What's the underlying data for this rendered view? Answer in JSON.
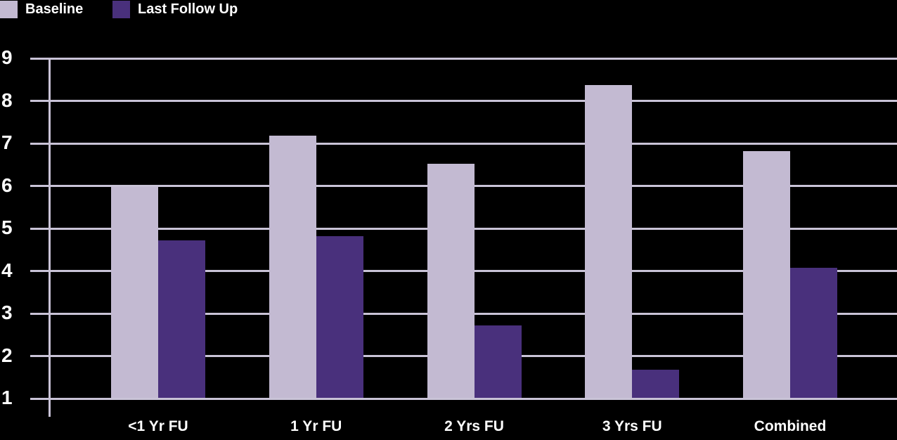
{
  "chart_data": {
    "type": "bar",
    "categories": [
      "<1 Yr FU",
      "1 Yr FU",
      "2 Yrs FU",
      "3 Yrs FU",
      "Combined"
    ],
    "series": [
      {
        "name": "Baseline",
        "color": "#c3bad2",
        "values": [
          6.0,
          7.2,
          6.55,
          8.4,
          6.85
        ]
      },
      {
        "name": "Last Follow Up",
        "color": "#49307c",
        "values": [
          4.75,
          4.85,
          2.75,
          1.7,
          4.1
        ]
      }
    ],
    "yticks": [
      1,
      2,
      3,
      4,
      5,
      6,
      7,
      8,
      9
    ],
    "ylim": [
      1,
      9
    ],
    "title": "",
    "xlabel": "",
    "ylabel": "",
    "grid": true,
    "legend_position": "top-left",
    "background_color": "#000000",
    "gridline_color": "#c9c3d7",
    "text_color": "#ffffff"
  }
}
